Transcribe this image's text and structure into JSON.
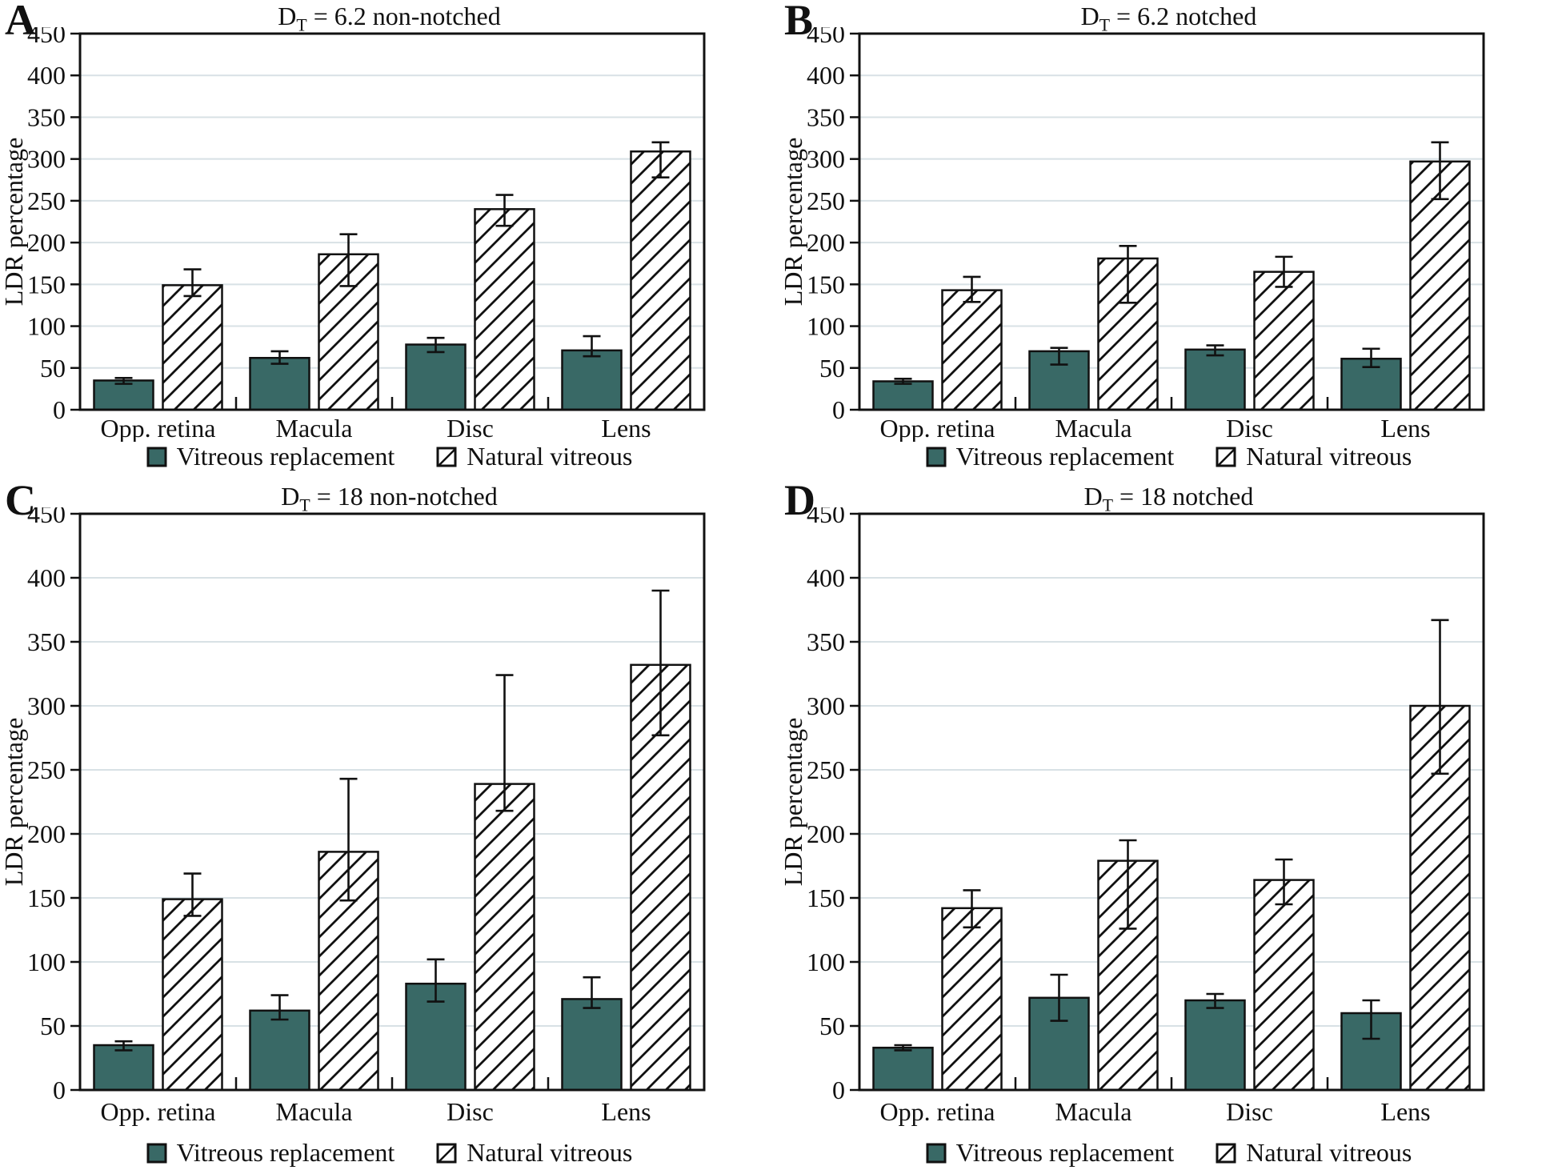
{
  "colors": {
    "replacement_fill": "#396966",
    "bar_border": "#111111",
    "hatch_line": "#111111",
    "grid": "#d8e1e5",
    "axis": "#111111",
    "text": "#111111",
    "background": "#ffffff"
  },
  "legend": {
    "replacement_label": "Vitreous replacement",
    "natural_label": "Natural vitreous"
  },
  "chart_data": [
    {
      "type": "bar",
      "panel_label": "A",
      "title": "D_T = 6.2 non-notched",
      "title_parts": {
        "base": "D",
        "sub": "T",
        "rest": " = 6.2 non-notched"
      },
      "categories": [
        "Opp. retina",
        "Macula",
        "Disc",
        "Lens"
      ],
      "xlabel": "",
      "ylabel": "LDR percentage",
      "ylim": [
        0,
        450
      ],
      "y_step": 50,
      "grid": true,
      "legend_position": "bottom",
      "series": [
        {
          "name": "Vitreous replacement",
          "style": "solid-teal",
          "values": [
            35,
            62,
            78,
            71
          ],
          "err_low": [
            31,
            55,
            69,
            64
          ],
          "err_high": [
            38,
            70,
            86,
            88
          ]
        },
        {
          "name": "Natural vitreous",
          "style": "hatched",
          "values": [
            149,
            186,
            240,
            309
          ],
          "err_low": [
            136,
            148,
            220,
            278
          ],
          "err_high": [
            168,
            210,
            257,
            320
          ]
        }
      ]
    },
    {
      "type": "bar",
      "panel_label": "B",
      "title": "D_T = 6.2 notched",
      "title_parts": {
        "base": "D",
        "sub": "T",
        "rest": " = 6.2 notched"
      },
      "categories": [
        "Opp. retina",
        "Macula",
        "Disc",
        "Lens"
      ],
      "xlabel": "",
      "ylabel": "LDR percentage",
      "ylim": [
        0,
        450
      ],
      "y_step": 50,
      "grid": true,
      "legend_position": "bottom",
      "series": [
        {
          "name": "Vitreous replacement",
          "style": "solid-teal",
          "values": [
            34,
            70,
            72,
            61
          ],
          "err_low": [
            31,
            54,
            65,
            51
          ],
          "err_high": [
            37,
            74,
            77,
            73
          ]
        },
        {
          "name": "Natural vitreous",
          "style": "hatched",
          "values": [
            143,
            181,
            165,
            297
          ],
          "err_low": [
            129,
            128,
            147,
            252
          ],
          "err_high": [
            159,
            196,
            183,
            320
          ]
        }
      ]
    },
    {
      "type": "bar",
      "panel_label": "C",
      "title": "D_T = 18 non-notched",
      "title_parts": {
        "base": "D",
        "sub": "T",
        "rest": " = 18 non-notched"
      },
      "categories": [
        "Opp. retina",
        "Macula",
        "Disc",
        "Lens"
      ],
      "xlabel": "",
      "ylabel": "LDR percentage",
      "ylim": [
        0,
        450
      ],
      "y_step": 50,
      "grid": true,
      "legend_position": "bottom",
      "series": [
        {
          "name": "Vitreous replacement",
          "style": "solid-teal",
          "values": [
            35,
            62,
            83,
            71
          ],
          "err_low": [
            31,
            55,
            69,
            64
          ],
          "err_high": [
            38,
            74,
            102,
            88
          ]
        },
        {
          "name": "Natural vitreous",
          "style": "hatched",
          "values": [
            149,
            186,
            239,
            332
          ],
          "err_low": [
            136,
            148,
            218,
            277
          ],
          "err_high": [
            169,
            243,
            324,
            390
          ]
        }
      ]
    },
    {
      "type": "bar",
      "panel_label": "D",
      "title": "D_T = 18 notched",
      "title_parts": {
        "base": "D",
        "sub": "T",
        "rest": " = 18 notched"
      },
      "categories": [
        "Opp. retina",
        "Macula",
        "Disc",
        "Lens"
      ],
      "xlabel": "",
      "ylabel": "LDR percentage",
      "ylim": [
        0,
        450
      ],
      "y_step": 50,
      "grid": true,
      "legend_position": "bottom",
      "series": [
        {
          "name": "Vitreous replacement",
          "style": "solid-teal",
          "values": [
            33,
            72,
            70,
            60
          ],
          "err_low": [
            31,
            54,
            64,
            40
          ],
          "err_high": [
            35,
            90,
            75,
            70
          ]
        },
        {
          "name": "Natural vitreous",
          "style": "hatched",
          "values": [
            142,
            179,
            164,
            300
          ],
          "err_low": [
            127,
            126,
            145,
            247
          ],
          "err_high": [
            156,
            195,
            180,
            367
          ]
        }
      ]
    }
  ]
}
